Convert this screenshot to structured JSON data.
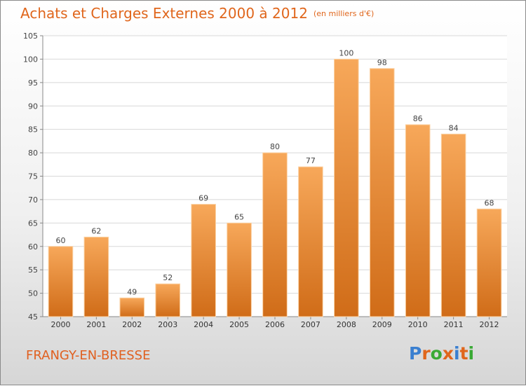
{
  "header": {
    "title": "Achats et Charges Externes 2000 à 2012",
    "unit": "(en milliers d'€)"
  },
  "footer": {
    "location": "FRANGY-EN-BRESSE",
    "logo_letters": [
      "P",
      "r",
      "o",
      "x",
      "i",
      "t",
      "i"
    ],
    "logo_colors": [
      "#3a7fd0",
      "#e0661c",
      "#3aaa35",
      "#e0661c",
      "#3a7fd0",
      "#e0661c",
      "#3aaa35"
    ]
  },
  "colors": {
    "bar_top": "#f7a85a",
    "bar_bottom": "#d06c18",
    "title": "#e0661c",
    "grid": "#d8d8d8"
  },
  "chart_data": {
    "type": "bar",
    "title": "Achats et Charges Externes 2000 à 2012",
    "xlabel": "",
    "ylabel": "",
    "categories": [
      "2000",
      "2001",
      "2002",
      "2003",
      "2004",
      "2005",
      "2006",
      "2007",
      "2008",
      "2009",
      "2010",
      "2011",
      "2012"
    ],
    "values": [
      60,
      62,
      49,
      52,
      69,
      65,
      80,
      77,
      100,
      98,
      86,
      84,
      68
    ],
    "ylim": [
      45,
      105
    ],
    "yticks": [
      45,
      50,
      55,
      60,
      65,
      70,
      75,
      80,
      85,
      90,
      95,
      100,
      105
    ],
    "grid": true,
    "legend": "none"
  }
}
